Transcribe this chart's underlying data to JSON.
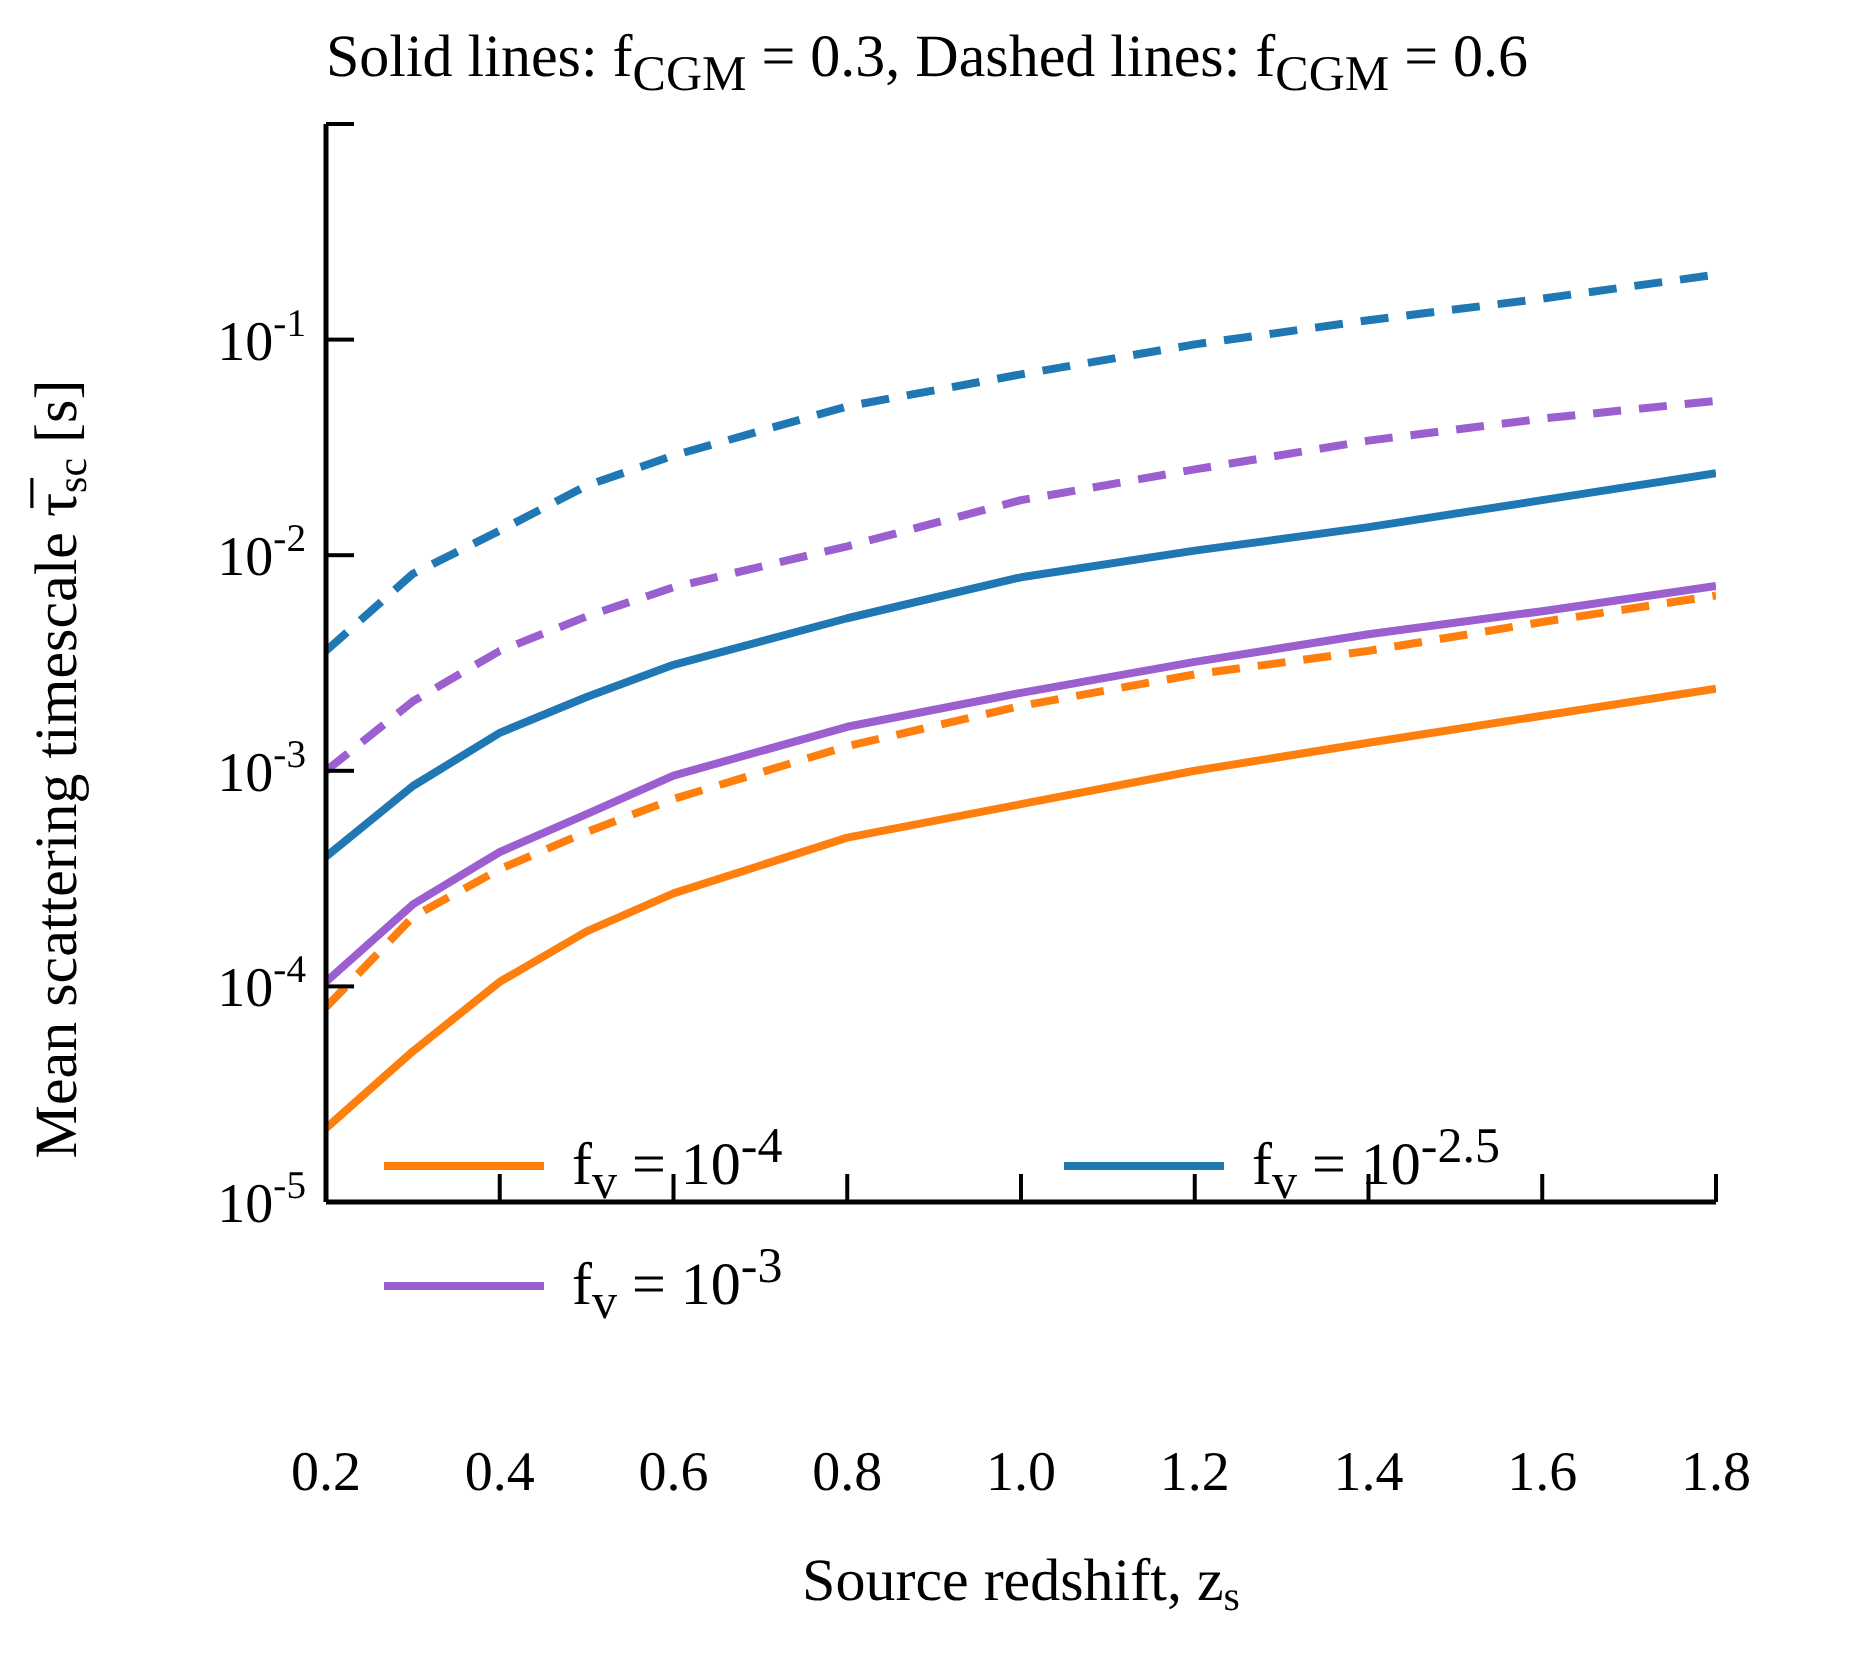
{
  "chart_data": {
    "type": "line",
    "title": "Solid lines: f$_{CGM}$ = 0.3, Dashed lines: f$_{CGM}$ = 0.6",
    "xlabel": "Source redshift, z$_{s}$",
    "ylabel": "Mean scattering timescale τ̅$_{sc}$ [s]",
    "x": [
      0.2,
      0.3,
      0.4,
      0.5,
      0.6,
      0.8,
      1.0,
      1.2,
      1.4,
      1.6,
      1.8
    ],
    "series": [
      {
        "name": "f$_{v}$ = 10$^{-4}$",
        "color": "#ff7f0e",
        "line_style": "solid",
        "values": [
          2.2e-05,
          5e-05,
          0.000105,
          0.00018,
          0.00027,
          0.00049,
          0.0007,
          0.001,
          0.00135,
          0.0018,
          0.0024
        ]
      },
      {
        "name": "f$_{v}$ = 10$^{-3}$",
        "color": "#9b5fcf",
        "line_style": "solid",
        "values": [
          0.000105,
          0.00024,
          0.00042,
          0.00063,
          0.00095,
          0.0016,
          0.0023,
          0.0032,
          0.0043,
          0.0055,
          0.0072
        ]
      },
      {
        "name": "f$_{v}$ = 10$^{-2.5}$",
        "color": "#1f77b4",
        "line_style": "solid",
        "values": [
          0.0004,
          0.00085,
          0.0015,
          0.0022,
          0.0031,
          0.0051,
          0.0079,
          0.0105,
          0.0135,
          0.018,
          0.024
        ]
      },
      {
        "color": "#ff7f0e",
        "line_style": "dashed",
        "values": [
          8e-05,
          0.00021,
          0.00035,
          0.00052,
          0.00074,
          0.0013,
          0.002,
          0.0028,
          0.0036,
          0.0049,
          0.0065
        ]
      },
      {
        "color": "#9b5fcf",
        "line_style": "dashed",
        "values": [
          0.001,
          0.0021,
          0.0036,
          0.0052,
          0.0071,
          0.011,
          0.018,
          0.025,
          0.034,
          0.043,
          0.052
        ]
      },
      {
        "color": "#1f77b4",
        "line_style": "dashed",
        "values": [
          0.0036,
          0.0082,
          0.013,
          0.021,
          0.029,
          0.049,
          0.069,
          0.095,
          0.123,
          0.155,
          0.2
        ]
      }
    ],
    "xlim": [
      0.2,
      1.8
    ],
    "xticks": [
      0.2,
      0.4,
      0.6,
      0.8,
      {
        "value": 1,
        "label": "1.0"
      },
      1.2,
      1.4,
      1.6,
      1.8
    ],
    "ylim": [
      1e-05,
      1
    ],
    "yticks": [
      {
        "value": 1e-05,
        "label": "10$^{-5}$"
      },
      {
        "value": 0.0001,
        "label": "10$^{-4}$"
      },
      {
        "value": 0.001,
        "label": "10$^{-3}$"
      },
      {
        "value": 0.01,
        "label": "10$^{-2}$"
      },
      {
        "value": 0.1,
        "label": "10$^{-1}$"
      },
      {
        "value": 1,
        "label": null
      }
    ],
    "log": "y",
    "grid": false,
    "legend": "bottom left",
    "marker": "none"
  }
}
